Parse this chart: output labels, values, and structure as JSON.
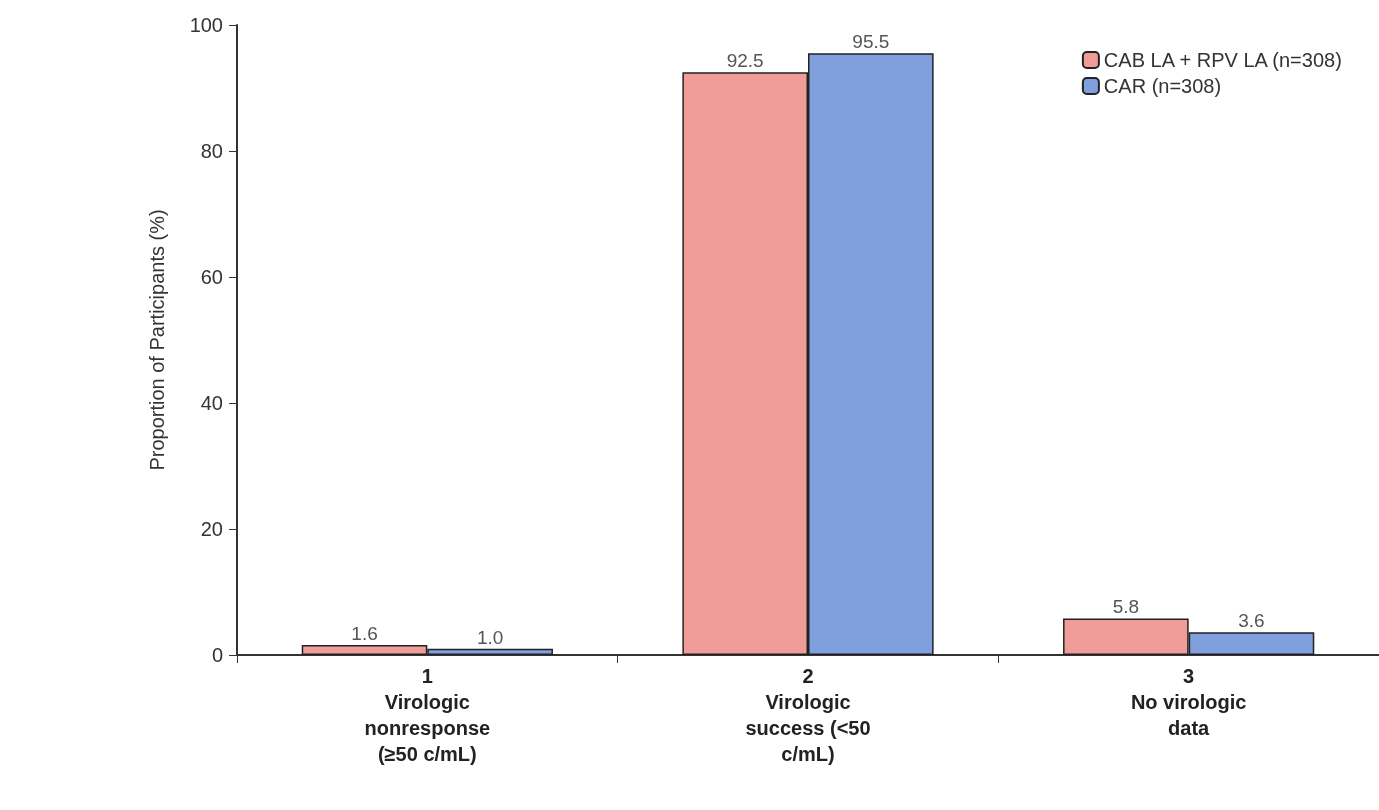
{
  "chart_data": {
    "type": "bar",
    "ylabel": "Proportion of Participants (%)",
    "categories": [
      "1\nVirologic\nnonresponse\n(≥50 c/mL)",
      "2\nVirologic\nsuccess (<50\nc/mL)",
      "3\nNo virologic\ndata"
    ],
    "series": [
      {
        "name": "CAB LA + RPV LA (n=308)",
        "color": "#f09c99",
        "values": [
          1.6,
          92.5,
          5.8
        ]
      },
      {
        "name": "CAR (n=308)",
        "color": "#7f9fdd",
        "values": [
          1.0,
          95.5,
          3.6
        ],
        "value_labels": [
          "1.0",
          "95.5",
          "3.6"
        ]
      }
    ],
    "ylim": [
      0,
      100
    ],
    "yticks": [
      0,
      20,
      40,
      60,
      80,
      100
    ],
    "grid": false,
    "legend": "top right",
    "data_labels": true
  }
}
